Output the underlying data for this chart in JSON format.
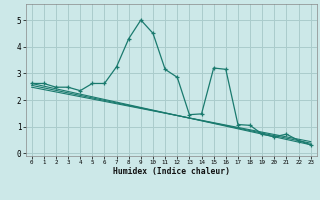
{
  "xlabel": "Humidex (Indice chaleur)",
  "background_color": "#cce8e8",
  "grid_color": "#aacccc",
  "line_color": "#1a7a6e",
  "xlim": [
    -0.5,
    23.5
  ],
  "ylim": [
    -0.1,
    5.6
  ],
  "xtick_labels": [
    "0",
    "1",
    "2",
    "3",
    "4",
    "5",
    "6",
    "7",
    "8",
    "9",
    "10",
    "11",
    "12",
    "13",
    "14",
    "15",
    "16",
    "17",
    "18",
    "19",
    "20",
    "21",
    "22",
    "23"
  ],
  "ytick_values": [
    0,
    1,
    2,
    3,
    4,
    5
  ],
  "line1_x": [
    0,
    1,
    2,
    3,
    4,
    5,
    6,
    7,
    8,
    9,
    10,
    11,
    12,
    13,
    14,
    15,
    16,
    17,
    18,
    19,
    20,
    21,
    22,
    23
  ],
  "line1_y": [
    2.62,
    2.62,
    2.48,
    2.48,
    2.35,
    2.62,
    2.62,
    3.25,
    4.3,
    5.0,
    4.5,
    3.15,
    2.85,
    1.45,
    1.48,
    3.2,
    3.15,
    1.08,
    1.05,
    0.72,
    0.62,
    0.72,
    0.48,
    0.32
  ],
  "line2_x": [
    0,
    23
  ],
  "line2_y": [
    2.62,
    0.32
  ],
  "line3_x": [
    0,
    23
  ],
  "line3_y": [
    2.55,
    0.38
  ],
  "line4_x": [
    0,
    23
  ],
  "line4_y": [
    2.48,
    0.44
  ]
}
